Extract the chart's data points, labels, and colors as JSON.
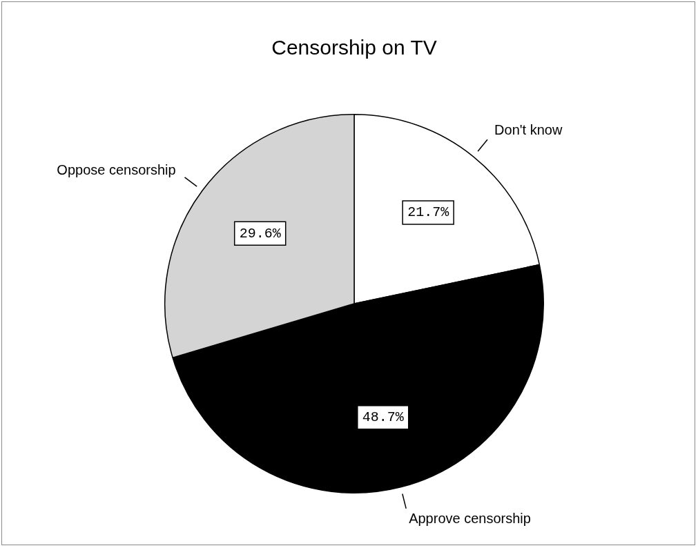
{
  "chart_data": {
    "type": "pie",
    "title": "Censorship on TV",
    "categories": [
      "Don't know",
      "Approve censorship",
      "Oppose censorship"
    ],
    "values": [
      21.7,
      48.7,
      29.6
    ],
    "colors": [
      "#ffffff",
      "#000000",
      "#d4d4d4"
    ],
    "value_labels": [
      "21.7%",
      "48.7%",
      "29.6%"
    ],
    "legend": false
  }
}
